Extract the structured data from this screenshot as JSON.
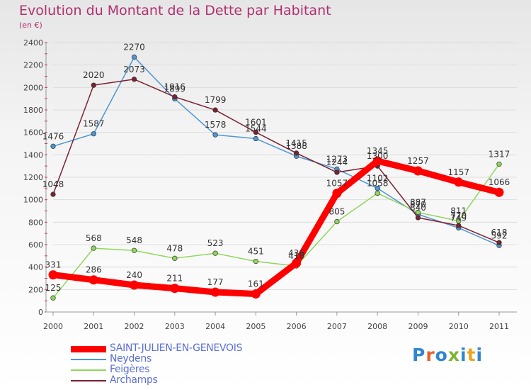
{
  "title": "Evolution du Montant de la Dette par Habitant",
  "subtitle": "(en €)",
  "logo": {
    "text": "Proxiti",
    "colors": [
      "#2f86d0",
      "#e8612c",
      "#2f86d0",
      "#7ab532",
      "#2f86d0",
      "#e8a81c",
      "#2f86d0"
    ]
  },
  "chart_data": {
    "type": "line",
    "x": [
      "2000",
      "2001",
      "2002",
      "2003",
      "2004",
      "2005",
      "2006",
      "2007",
      "2008",
      "2009",
      "2010",
      "2011"
    ],
    "ylim": [
      0,
      2400
    ],
    "yticks": [
      "0",
      "200",
      "400",
      "600",
      "800",
      "1000",
      "1200",
      "1400",
      "1600",
      "1800",
      "2000",
      "2200",
      "2400"
    ],
    "grid": "horizontal",
    "legend": "bottom-left",
    "series": [
      {
        "name": "SAINT-JULIEN-EN-GENEVOIS",
        "color": "#ff0000",
        "values": [
          331,
          286,
          240,
          211,
          177,
          161,
          436,
          1057,
          1345,
          1257,
          1157,
          1066
        ],
        "labels": [
          "331",
          "286",
          "240",
          "211",
          "177",
          "161",
          "436",
          "1057",
          "1345",
          "1257",
          "1157",
          "1066"
        ]
      },
      {
        "name": "Neydens",
        "color": "#4d97d2",
        "values": [
          1476,
          1587,
          2270,
          1899,
          1578,
          1544,
          1388,
          1273,
          1102,
          870,
          749,
          592
        ],
        "labels": [
          "1476",
          "1587",
          "2270",
          "1899",
          "1578",
          "1544",
          "1388",
          "1273",
          "1102",
          "870",
          "749",
          "592"
        ]
      },
      {
        "name": "Feigères",
        "color": "#8fd65a",
        "values": [
          125,
          568,
          548,
          478,
          523,
          451,
          410,
          805,
          1058,
          887,
          811,
          1317
        ],
        "labels": [
          "125",
          "568",
          "548",
          "478",
          "523",
          "451",
          "410",
          "805",
          "1058",
          "887",
          "811",
          "1317"
        ]
      },
      {
        "name": "Archamps",
        "color": "#7a2232",
        "values": [
          1048,
          2020,
          2073,
          1916,
          1799,
          1601,
          1415,
          1244,
          1300,
          840,
          770,
          618
        ],
        "labels": [
          "1048",
          "2020",
          "2073",
          "1916",
          "1799",
          "1601",
          "1415",
          "1244",
          "1300",
          "840",
          "770",
          "618"
        ]
      }
    ]
  }
}
